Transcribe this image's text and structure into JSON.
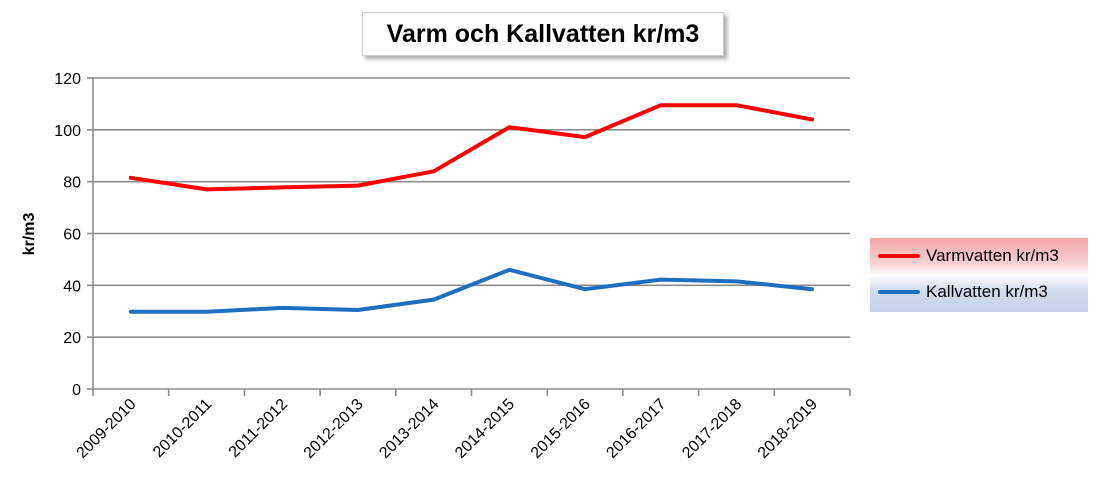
{
  "chart_data": {
    "type": "line",
    "title": "Varm och Kallvatten kr/m3",
    "xlabel": "",
    "ylabel": "kr/m3",
    "ylim": [
      0,
      120
    ],
    "yticks": [
      0,
      20,
      40,
      60,
      80,
      100,
      120
    ],
    "grid": true,
    "legend_position": "right",
    "categories": [
      "2009-2010",
      "2010-2011",
      "2011-2012",
      "2012-2013",
      "2013-2014",
      "2014-2015",
      "2015-2016",
      "2016-2017",
      "2017-2018",
      "2018-2019"
    ],
    "series": [
      {
        "name": "Varmvatten kr/m3",
        "color": "#ff0000",
        "values": [
          81.5,
          77,
          77.8,
          78.5,
          84,
          101,
          97.2,
          109.5,
          109.5,
          104
        ]
      },
      {
        "name": "Kallvatten kr/m3",
        "color": "#1f6fbf",
        "values": [
          29.8,
          29.8,
          31.3,
          30.5,
          34.5,
          46,
          38.5,
          42.2,
          41.5,
          38.5
        ]
      }
    ]
  }
}
